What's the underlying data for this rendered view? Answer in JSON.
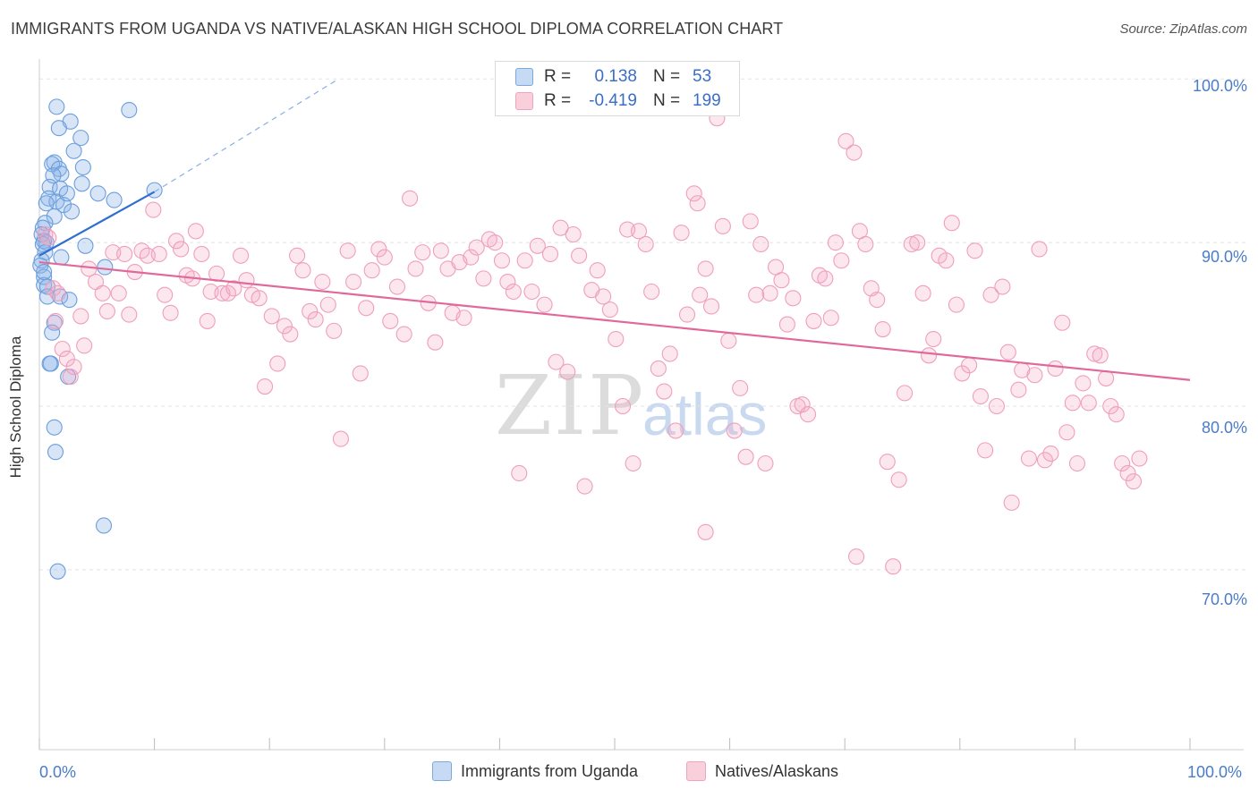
{
  "title": "IMMIGRANTS FROM UGANDA VS NATIVE/ALASKAN HIGH SCHOOL DIPLOMA CORRELATION CHART",
  "source": "Source: ZipAtlas.com",
  "watermark": {
    "zip": "ZIP",
    "atlas": "atlas"
  },
  "legend_top": {
    "rows": [
      {
        "r_label": "R =",
        "r_value": "0.138",
        "n_label": "N =",
        "n_value": "53"
      },
      {
        "r_label": "R =",
        "r_value": "-0.419",
        "n_label": "N =",
        "n_value": "199"
      }
    ]
  },
  "legend_bottom": [
    "Immigrants from Uganda",
    "Natives/Alaskans"
  ],
  "colors": {
    "blue": "#7aa8e0",
    "blue_line": "#2f6fcf",
    "pink": "#f0a3bd",
    "pink_line": "#e0699a"
  },
  "chart_data": {
    "type": "scatter",
    "ylabel": "High School Diploma",
    "xlabel": "",
    "xlim": [
      0,
      100
    ],
    "ylim": [
      59,
      101
    ],
    "x_tick_labels": [
      "0.0%",
      "100.0%"
    ],
    "y_ticks": [
      70,
      80,
      90,
      100
    ],
    "y_tick_labels": [
      "70.0%",
      "80.0%",
      "90.0%",
      "100.0%"
    ],
    "grid": true,
    "series": [
      {
        "name": "Immigrants from Uganda",
        "color": "#7aa8e0",
        "trend": {
          "x": [
            0,
            10
          ],
          "y": [
            89.2,
            93.1
          ],
          "dashed_to": [
            26,
            100
          ]
        },
        "points": [
          [
            1.5,
            98.3
          ],
          [
            7.8,
            98.1
          ],
          [
            2.7,
            97.4
          ],
          [
            1.7,
            97.0
          ],
          [
            3.6,
            96.4
          ],
          [
            3.0,
            95.6
          ],
          [
            1.3,
            94.9
          ],
          [
            1.1,
            94.8
          ],
          [
            3.8,
            94.6
          ],
          [
            1.7,
            94.5
          ],
          [
            1.9,
            94.2
          ],
          [
            1.2,
            94.1
          ],
          [
            3.7,
            93.6
          ],
          [
            0.9,
            93.4
          ],
          [
            1.8,
            93.3
          ],
          [
            5.1,
            93.0
          ],
          [
            10.0,
            93.2
          ],
          [
            0.8,
            92.7
          ],
          [
            6.5,
            92.6
          ],
          [
            1.5,
            92.5
          ],
          [
            2.1,
            92.3
          ],
          [
            0.6,
            92.4
          ],
          [
            2.8,
            91.9
          ],
          [
            1.3,
            91.6
          ],
          [
            0.5,
            91.2
          ],
          [
            0.3,
            90.9
          ],
          [
            0.2,
            90.5
          ],
          [
            0.4,
            90.1
          ],
          [
            0.6,
            90.0
          ],
          [
            0.3,
            89.9
          ],
          [
            4.0,
            89.8
          ],
          [
            0.5,
            89.4
          ],
          [
            1.9,
            89.1
          ],
          [
            0.2,
            88.9
          ],
          [
            0.1,
            88.6
          ],
          [
            5.7,
            88.5
          ],
          [
            0.4,
            87.9
          ],
          [
            0.4,
            87.4
          ],
          [
            0.7,
            87.3
          ],
          [
            0.7,
            86.7
          ],
          [
            1.8,
            86.7
          ],
          [
            2.6,
            86.5
          ],
          [
            1.3,
            85.1
          ],
          [
            1.1,
            84.5
          ],
          [
            1.0,
            82.6
          ],
          [
            0.9,
            82.6
          ],
          [
            2.5,
            81.8
          ],
          [
            1.3,
            78.7
          ],
          [
            1.4,
            77.2
          ],
          [
            5.6,
            72.7
          ],
          [
            1.6,
            69.9
          ],
          [
            0.4,
            88.2
          ],
          [
            2.4,
            93.0
          ]
        ]
      },
      {
        "name": "Natives/Alaskans",
        "color": "#f0a3bd",
        "trend": {
          "x": [
            0,
            100
          ],
          "y": [
            88.8,
            81.6
          ]
        },
        "points": [
          [
            0.5,
            90.5
          ],
          [
            0.8,
            90.3
          ],
          [
            1.2,
            87.2
          ],
          [
            1.6,
            86.9
          ],
          [
            1.4,
            85.2
          ],
          [
            2.0,
            83.5
          ],
          [
            2.4,
            82.9
          ],
          [
            2.7,
            81.8
          ],
          [
            3.0,
            82.4
          ],
          [
            3.6,
            85.5
          ],
          [
            3.9,
            83.7
          ],
          [
            4.3,
            88.4
          ],
          [
            4.9,
            87.6
          ],
          [
            5.5,
            86.9
          ],
          [
            5.9,
            85.8
          ],
          [
            6.4,
            89.4
          ],
          [
            6.9,
            86.9
          ],
          [
            7.4,
            89.3
          ],
          [
            7.8,
            85.6
          ],
          [
            8.3,
            88.2
          ],
          [
            8.9,
            89.5
          ],
          [
            9.4,
            89.2
          ],
          [
            9.9,
            92.0
          ],
          [
            10.4,
            89.3
          ],
          [
            10.9,
            86.8
          ],
          [
            11.4,
            85.7
          ],
          [
            11.9,
            90.1
          ],
          [
            12.3,
            89.6
          ],
          [
            12.8,
            88.0
          ],
          [
            13.3,
            87.8
          ],
          [
            13.6,
            90.7
          ],
          [
            14.1,
            89.3
          ],
          [
            14.6,
            85.2
          ],
          [
            14.9,
            87.0
          ],
          [
            15.4,
            88.1
          ],
          [
            15.9,
            86.9
          ],
          [
            16.4,
            86.9
          ],
          [
            16.9,
            87.2
          ],
          [
            17.5,
            89.2
          ],
          [
            18.0,
            87.7
          ],
          [
            18.5,
            86.8
          ],
          [
            19.1,
            86.6
          ],
          [
            19.6,
            81.2
          ],
          [
            20.2,
            85.5
          ],
          [
            20.7,
            82.6
          ],
          [
            21.3,
            84.9
          ],
          [
            21.8,
            84.4
          ],
          [
            22.4,
            89.2
          ],
          [
            22.9,
            88.3
          ],
          [
            23.5,
            85.8
          ],
          [
            24.0,
            85.3
          ],
          [
            24.6,
            87.6
          ],
          [
            25.1,
            86.2
          ],
          [
            25.6,
            84.6
          ],
          [
            26.2,
            78.0
          ],
          [
            26.8,
            89.5
          ],
          [
            27.3,
            87.6
          ],
          [
            27.9,
            82.0
          ],
          [
            28.4,
            86.0
          ],
          [
            28.9,
            88.3
          ],
          [
            29.5,
            89.6
          ],
          [
            30.0,
            89.1
          ],
          [
            30.5,
            85.2
          ],
          [
            31.1,
            87.3
          ],
          [
            31.7,
            84.4
          ],
          [
            32.2,
            92.7
          ],
          [
            32.7,
            88.4
          ],
          [
            33.3,
            89.4
          ],
          [
            33.8,
            86.3
          ],
          [
            34.4,
            83.9
          ],
          [
            34.9,
            89.5
          ],
          [
            35.5,
            88.4
          ],
          [
            35.9,
            85.7
          ],
          [
            36.5,
            88.8
          ],
          [
            36.9,
            85.4
          ],
          [
            37.5,
            89.1
          ],
          [
            38.0,
            89.7
          ],
          [
            38.6,
            87.8
          ],
          [
            39.1,
            90.2
          ],
          [
            39.6,
            90.0
          ],
          [
            40.2,
            88.9
          ],
          [
            40.7,
            87.6
          ],
          [
            41.2,
            87.0
          ],
          [
            41.7,
            75.9
          ],
          [
            42.2,
            88.9
          ],
          [
            42.8,
            87.0
          ],
          [
            43.3,
            89.8
          ],
          [
            43.9,
            86.2
          ],
          [
            44.4,
            89.3
          ],
          [
            44.9,
            82.7
          ],
          [
            45.3,
            90.9
          ],
          [
            45.9,
            82.1
          ],
          [
            46.4,
            90.5
          ],
          [
            46.9,
            89.2
          ],
          [
            47.4,
            75.1
          ],
          [
            48.0,
            87.1
          ],
          [
            48.5,
            88.3
          ],
          [
            49.0,
            86.7
          ],
          [
            49.6,
            85.9
          ],
          [
            50.1,
            84.1
          ],
          [
            50.7,
            80.0
          ],
          [
            51.1,
            90.8
          ],
          [
            51.6,
            76.5
          ],
          [
            52.1,
            90.7
          ],
          [
            52.7,
            89.9
          ],
          [
            53.2,
            87.0
          ],
          [
            53.8,
            82.3
          ],
          [
            54.3,
            80.9
          ],
          [
            54.8,
            83.2
          ],
          [
            55.3,
            78.5
          ],
          [
            55.8,
            90.6
          ],
          [
            56.3,
            85.6
          ],
          [
            56.9,
            93.0
          ],
          [
            57.2,
            92.4
          ],
          [
            57.4,
            86.8
          ],
          [
            57.9,
            88.4
          ],
          [
            58.4,
            86.1
          ],
          [
            58.9,
            97.6
          ],
          [
            59.4,
            91.0
          ],
          [
            59.9,
            84.0
          ],
          [
            60.4,
            78.5
          ],
          [
            60.9,
            81.1
          ],
          [
            61.4,
            76.9
          ],
          [
            61.8,
            91.3
          ],
          [
            62.3,
            86.8
          ],
          [
            62.7,
            89.9
          ],
          [
            63.1,
            76.5
          ],
          [
            63.5,
            86.9
          ],
          [
            64.0,
            88.5
          ],
          [
            64.5,
            87.7
          ],
          [
            65.0,
            85.0
          ],
          [
            65.5,
            86.6
          ],
          [
            65.9,
            80.0
          ],
          [
            66.3,
            80.1
          ],
          [
            66.8,
            79.5
          ],
          [
            67.3,
            85.2
          ],
          [
            67.8,
            88.0
          ],
          [
            68.3,
            87.8
          ],
          [
            68.8,
            85.4
          ],
          [
            69.2,
            90.0
          ],
          [
            69.7,
            88.9
          ],
          [
            70.1,
            96.2
          ],
          [
            70.8,
            95.5
          ],
          [
            71.3,
            90.7
          ],
          [
            71.8,
            89.9
          ],
          [
            72.3,
            87.2
          ],
          [
            72.8,
            86.5
          ],
          [
            73.3,
            84.7
          ],
          [
            73.7,
            76.6
          ],
          [
            74.2,
            70.2
          ],
          [
            74.7,
            75.5
          ],
          [
            75.2,
            80.8
          ],
          [
            75.8,
            89.9
          ],
          [
            76.3,
            90.0
          ],
          [
            76.8,
            86.9
          ],
          [
            77.3,
            83.1
          ],
          [
            77.7,
            84.1
          ],
          [
            78.2,
            89.2
          ],
          [
            78.8,
            88.9
          ],
          [
            79.3,
            91.2
          ],
          [
            79.7,
            86.2
          ],
          [
            80.2,
            82.0
          ],
          [
            80.8,
            82.5
          ],
          [
            81.3,
            89.5
          ],
          [
            81.8,
            80.6
          ],
          [
            82.2,
            77.3
          ],
          [
            82.7,
            86.8
          ],
          [
            83.2,
            80.0
          ],
          [
            83.7,
            87.3
          ],
          [
            84.2,
            83.3
          ],
          [
            84.5,
            74.1
          ],
          [
            85.1,
            81.0
          ],
          [
            85.4,
            82.2
          ],
          [
            86.0,
            76.8
          ],
          [
            86.5,
            81.9
          ],
          [
            86.9,
            89.6
          ],
          [
            87.4,
            76.7
          ],
          [
            87.9,
            77.1
          ],
          [
            88.3,
            82.3
          ],
          [
            88.9,
            85.1
          ],
          [
            89.3,
            78.4
          ],
          [
            89.8,
            80.2
          ],
          [
            90.2,
            76.5
          ],
          [
            90.7,
            81.4
          ],
          [
            91.2,
            80.2
          ],
          [
            91.7,
            83.2
          ],
          [
            92.2,
            83.1
          ],
          [
            92.7,
            81.7
          ],
          [
            93.1,
            80.0
          ],
          [
            93.6,
            79.5
          ],
          [
            94.1,
            76.5
          ],
          [
            94.6,
            75.9
          ],
          [
            95.1,
            75.4
          ],
          [
            95.6,
            76.8
          ],
          [
            71.0,
            70.8
          ],
          [
            57.9,
            72.3
          ]
        ]
      }
    ]
  }
}
